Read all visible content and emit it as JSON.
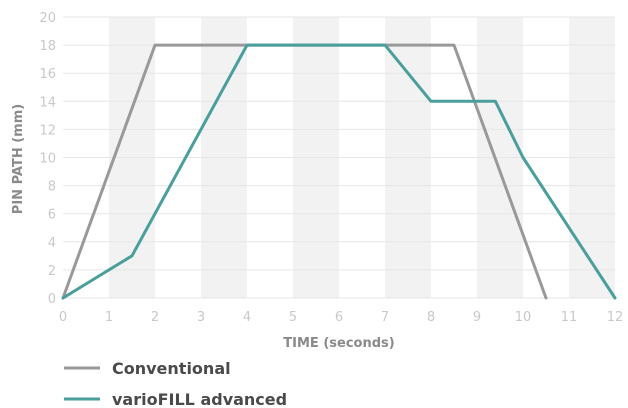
{
  "chart_data": {
    "type": "line",
    "xlabel": "TIME (seconds)",
    "ylabel": "PIN PATH (mm)",
    "xlim": [
      0,
      12
    ],
    "ylim": [
      0,
      20
    ],
    "x_ticks": [
      "0",
      "1",
      "2",
      "3",
      "4",
      "5",
      "6",
      "7",
      "8",
      "9",
      "10",
      "11",
      "12"
    ],
    "y_ticks": [
      "0",
      "2",
      "4",
      "6",
      "8",
      "10",
      "12",
      "14",
      "16",
      "18",
      "20"
    ],
    "grid": true,
    "legend_position": "bottom-left",
    "series": [
      {
        "name": "Conventional",
        "color": "#999999",
        "points": [
          [
            0,
            0
          ],
          [
            2,
            18
          ],
          [
            8.5,
            18
          ],
          [
            10.5,
            0
          ]
        ]
      },
      {
        "name": "varioFILL advanced",
        "color": "#4a9e9c",
        "points": [
          [
            0,
            0
          ],
          [
            1.5,
            3
          ],
          [
            4,
            18
          ],
          [
            7,
            18
          ],
          [
            8,
            14
          ],
          [
            9.4,
            14
          ],
          [
            10,
            10
          ],
          [
            12,
            0
          ]
        ]
      }
    ]
  }
}
